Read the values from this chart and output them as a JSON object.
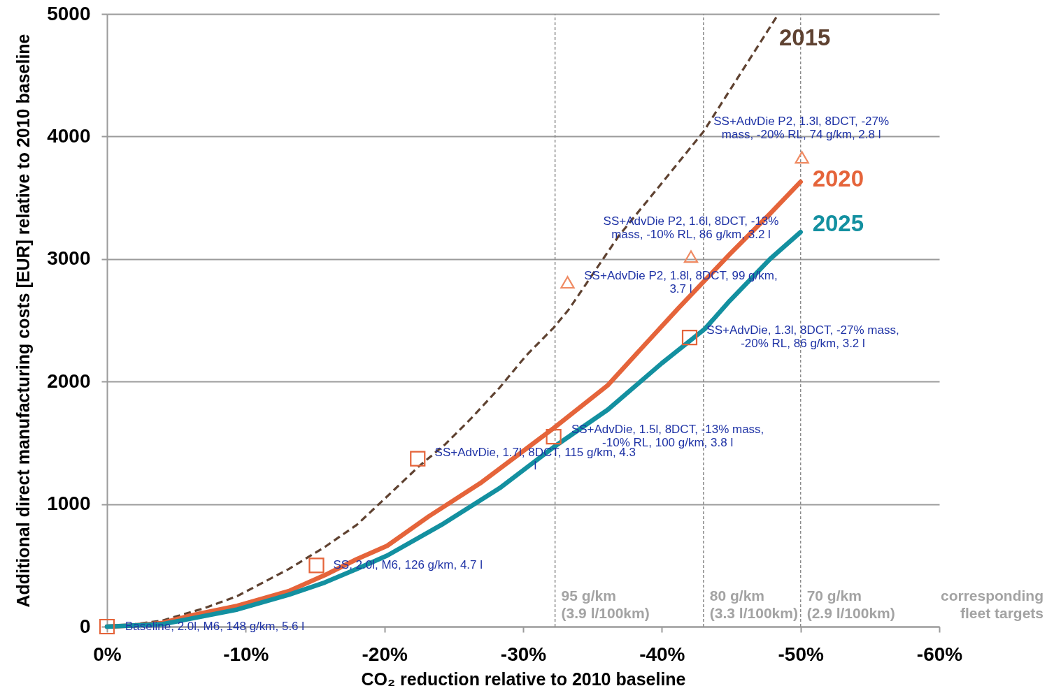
{
  "chart_data": {
    "type": "line",
    "xlabel": "CO₂ reduction relative to 2010 baseline",
    "ylabel": "Additional direct manufacturing costs [EUR] relative to 2010 baseline",
    "xlim": [
      0,
      -60
    ],
    "xticks": [
      {
        "value": 0,
        "label": "0%"
      },
      {
        "value": -10,
        "label": "-10%"
      },
      {
        "value": -20,
        "label": "-20%"
      },
      {
        "value": -30,
        "label": "-30%"
      },
      {
        "value": -40,
        "label": "-40%"
      },
      {
        "value": -50,
        "label": "-50%"
      },
      {
        "value": -60,
        "label": "-60%"
      }
    ],
    "ylim": [
      0,
      5000
    ],
    "yticks": [
      0,
      1000,
      2000,
      3000,
      4000,
      5000
    ],
    "grid": "y",
    "series": [
      {
        "name": "2015",
        "color": "#5f4231",
        "line_style": "dashed",
        "x": [
          0,
          -2,
          -4,
          -7,
          -9.4,
          -13.1,
          -15.7,
          -18,
          -20.5,
          -22.5,
          -24.4,
          -26.3,
          -28.3,
          -30.2,
          -32.2,
          -33.3,
          -36.9,
          -40,
          -43,
          -46.6,
          -48.4
        ],
        "values": [
          0,
          20,
          50,
          150,
          250,
          470,
          650,
          830,
          1095,
          1310,
          1490,
          1705,
          1950,
          2210,
          2440,
          2590,
          3190,
          3620,
          4040,
          4680,
          5000
        ]
      },
      {
        "name": "2020",
        "color": "#e5643a",
        "line_style": "solid",
        "x": [
          0,
          -2,
          -4,
          -6,
          -9.4,
          -13.1,
          -15.7,
          -18,
          -20.2,
          -23.2,
          -26.9,
          -32.2,
          -36.1,
          -38.6,
          -41.2,
          -44.9,
          -47.8,
          -50
        ],
        "values": [
          0,
          10,
          30,
          90,
          170,
          290,
          420,
          550,
          660,
          900,
          1170,
          1620,
          1970,
          2280,
          2600,
          3040,
          3370,
          3630
        ]
      },
      {
        "name": "2025",
        "color": "#1390a0",
        "line_style": "solid",
        "x": [
          0,
          -4,
          -9.4,
          -13.1,
          -15.7,
          -18,
          -20.2,
          -24.1,
          -28.3,
          -32.2,
          -36.1,
          -40,
          -43.1,
          -44.9,
          -47.8,
          -50
        ],
        "values": [
          0,
          20,
          140,
          260,
          360,
          470,
          580,
          830,
          1130,
          1465,
          1770,
          2150,
          2430,
          2660,
          3000,
          3220
        ]
      },
      {
        "type": "scatter",
        "color": "#e5643a",
        "marker": "square",
        "x": [
          0,
          -15.1,
          -22.4,
          -32.2,
          -42.0
        ],
        "values": [
          0,
          500,
          1370,
          1550,
          2360
        ]
      },
      {
        "type": "scatter",
        "color": "#ef8a62",
        "marker": "triangle",
        "x": [
          -33.2,
          -42.1,
          -50.1
        ],
        "values": [
          2810,
          3020,
          3830
        ]
      }
    ],
    "ref_lines": [
      {
        "axis": "x",
        "value": -32.3,
        "label": "95 g/km\n(3.9 l/100km)",
        "color": "#8c8c8c",
        "line_style": "dashed"
      },
      {
        "axis": "x",
        "value": -43,
        "label": "80 g/km\n(3.3 l/100km)",
        "color": "#8c8c8c",
        "line_style": "dashed"
      },
      {
        "axis": "x",
        "value": -50,
        "label": "70 g/km\n(2.9 l/100km)",
        "color": "#8c8c8c",
        "line_style": "dashed"
      }
    ],
    "annotations": [
      {
        "text": "Baseline, 2.0l, M6, 148 g/km, 5.6 l",
        "x": 0,
        "y": 0
      },
      {
        "text": "SS, 2.0l, M6, 126 g/km, 4.7 l",
        "x": -15.1,
        "y": 500
      },
      {
        "text": "SS+AdvDie, 1.7l, 8DCT, 115 g/km, 4.3\nl",
        "x": -22.4,
        "y": 1370
      },
      {
        "text": "SS+AdvDie, 1.5l, 8DCT, -13% mass,\n-10% RL, 100 g/km, 3.8 l",
        "x": -32.2,
        "y": 1550
      },
      {
        "text": "SS+AdvDie, 1.3l, 8DCT, -27% mass,\n-20% RL, 86 g/km, 3.2 l",
        "x": -42.0,
        "y": 2360
      },
      {
        "text": "SS+AdvDie P2, 1.8l, 8DCT, 99 g/km,\n3.7 l",
        "x": -33.2,
        "y": 2810
      },
      {
        "text": "SS+AdvDie P2, 1.6l, 8DCT, -13%\nmass, -10% RL, 86 g/km, 3.2 l",
        "x": -42.1,
        "y": 3020
      },
      {
        "text": "SS+AdvDie P2, 1.3l, 8DCT, -27%\nmass, -20% RL, 74 g/km, 2.8 l",
        "x": -50.1,
        "y": 3830
      },
      "corresponding\nfleet targets"
    ]
  }
}
